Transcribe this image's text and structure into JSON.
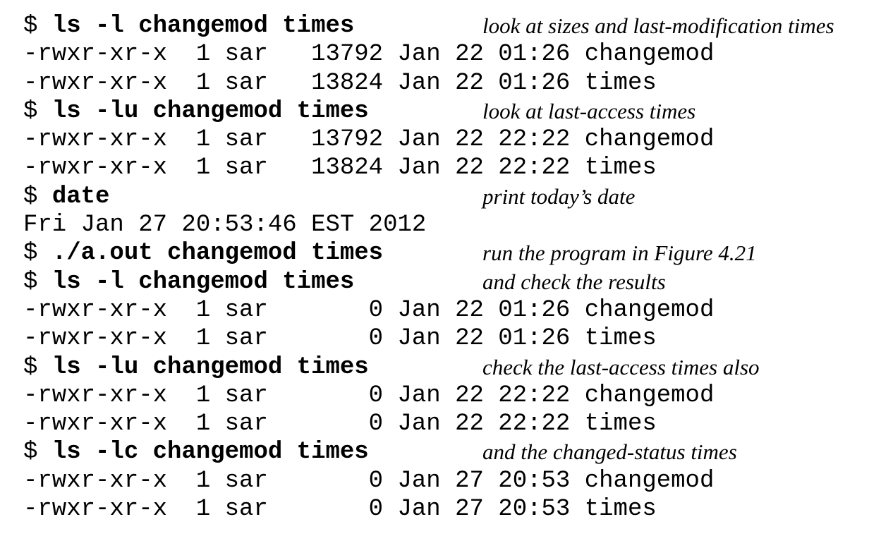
{
  "prompt": "$",
  "lines": [
    {
      "type": "command",
      "text": "ls -l changemod times",
      "comment": "look at sizes and last-modification times"
    },
    {
      "type": "output",
      "text": "-rwxr-xr-x  1 sar   13792 Jan 22 01:26 changemod"
    },
    {
      "type": "output",
      "text": "-rwxr-xr-x  1 sar   13824 Jan 22 01:26 times"
    },
    {
      "type": "command",
      "text": "ls -lu changemod times",
      "comment": "look at last-access times"
    },
    {
      "type": "output",
      "text": "-rwxr-xr-x  1 sar   13792 Jan 22 22:22 changemod"
    },
    {
      "type": "output",
      "text": "-rwxr-xr-x  1 sar   13824 Jan 22 22:22 times"
    },
    {
      "type": "command",
      "text": "date",
      "comment": "print today’s date"
    },
    {
      "type": "output",
      "text": "Fri Jan 27 20:53:46 EST 2012"
    },
    {
      "type": "command",
      "text": "./a.out changemod times",
      "comment": "run the program in Figure 4.21"
    },
    {
      "type": "command",
      "text": "ls -l changemod times",
      "comment": "and check the results"
    },
    {
      "type": "output",
      "text": "-rwxr-xr-x  1 sar       0 Jan 22 01:26 changemod"
    },
    {
      "type": "output",
      "text": "-rwxr-xr-x  1 sar       0 Jan 22 01:26 times"
    },
    {
      "type": "command",
      "text": "ls -lu changemod times",
      "comment": "check the last-access times also"
    },
    {
      "type": "output",
      "text": "-rwxr-xr-x  1 sar       0 Jan 22 22:22 changemod"
    },
    {
      "type": "output",
      "text": "-rwxr-xr-x  1 sar       0 Jan 22 22:22 times"
    },
    {
      "type": "command",
      "text": "ls -lc changemod times",
      "comment": "and the changed-status times"
    },
    {
      "type": "output",
      "text": "-rwxr-xr-x  1 sar       0 Jan 27 20:53 changemod"
    },
    {
      "type": "output",
      "text": "-rwxr-xr-x  1 sar       0 Jan 27 20:53 times"
    }
  ]
}
